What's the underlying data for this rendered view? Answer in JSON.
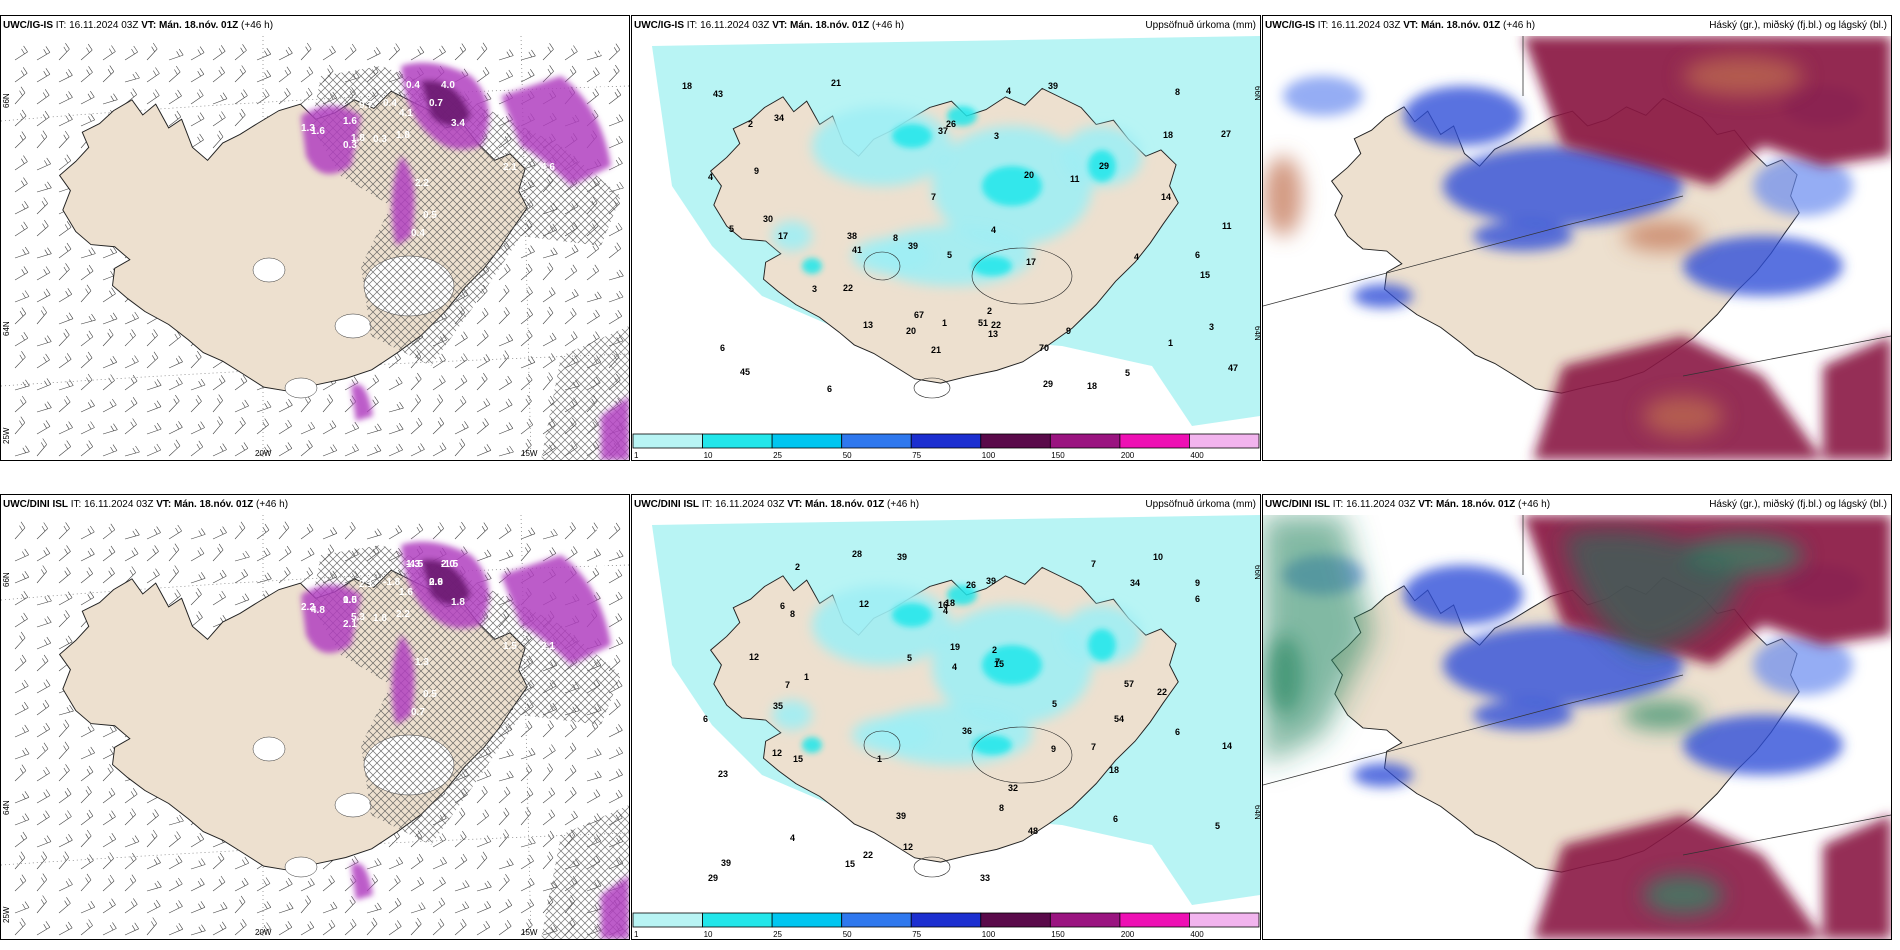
{
  "panels": [
    {
      "id": "p1",
      "source": "UWC/IG-IS",
      "it": " IT: 16.11.2024 03Z ",
      "vt": "VT: Mán. 18.nóv. 01Z",
      "lead": " (+46 h)",
      "title": "",
      "lon_labels": [
        "20W",
        "15W"
      ],
      "lat_labels": [
        "66N",
        "64N"
      ],
      "edge_label": "25W",
      "values": [
        "0.5",
        "0.4",
        "4.0",
        "0.5",
        "0.7",
        "1.6",
        "9.7",
        "1.3",
        "4.1",
        "1.6",
        "1.8",
        "3.4",
        "0.3",
        "1.8",
        "2.1",
        "4.6",
        "2.2",
        "0.5",
        "0.4",
        "0.3",
        "0.4"
      ]
    },
    {
      "id": "p2",
      "source": "UWC/IG-IS",
      "it": " IT: 16.11.2024 03Z ",
      "vt": "VT: Mán. 18.nóv. 01Z",
      "lead": " (+46 h)",
      "title": "Uppsöfnuð úrkoma (mm)",
      "lat_labels": [
        "66N",
        "64N"
      ],
      "values": [
        "1",
        "3",
        "2",
        "4",
        "9",
        "11",
        "18",
        "47",
        "34",
        "70",
        "30",
        "38",
        "39",
        "51",
        "67",
        "45",
        "37",
        "18",
        "13",
        "21",
        "27",
        "29",
        "22",
        "43",
        "20",
        "14",
        "26",
        "15",
        "41",
        "13",
        "22",
        "11",
        "20",
        "17",
        "17",
        "18",
        "7",
        "6",
        "4",
        "8",
        "3",
        "5",
        "29",
        "39",
        "21",
        "8",
        "9",
        "1",
        "2",
        "6",
        "5",
        "5",
        "4",
        "4",
        "3",
        "6"
      ]
    },
    {
      "id": "p3",
      "source": "UWC/IG-IS",
      "it": " IT: 16.11.2024 03Z ",
      "vt": "VT: Mán. 18.nóv. 01Z",
      "lead": " (+46 h)",
      "title": "Háský (gr.), miðský (fj.bl.) og lágský (bl.)"
    },
    {
      "id": "p4",
      "source": "UWC/DINI ISL",
      "it": " IT: 16.11.2024 03Z ",
      "vt": "VT: Mán. 18.nóv. 01Z",
      "lead": " (+46 h)",
      "title": "",
      "lon_labels": [
        "20W",
        "15W"
      ],
      "lat_labels": [
        "66N",
        "64N"
      ],
      "edge_label": "25W",
      "values": [
        "1.7",
        "1.3",
        "2.0",
        "1.2",
        "2.6",
        "0.5",
        "2.1",
        "2.2",
        "1.6",
        "4.8",
        "5.3",
        "1.8",
        "2.1",
        "2.2",
        "1.5",
        "2.1",
        "1.3",
        "0.5",
        "0.7",
        "1.8",
        "-1.8",
        "-2.5",
        "-4.5",
        "-1.5",
        "0.4",
        "0.9",
        "1.0"
      ]
    },
    {
      "id": "p5",
      "source": "UWC/DINI ISL",
      "it": " IT: 16.11.2024 03Z ",
      "vt": "VT: Mán. 18.nóv. 01Z",
      "lead": " (+46 h)",
      "title": "Uppsöfnuð úrkoma (mm)",
      "lat_labels": [
        "66N",
        "64N"
      ],
      "values": [
        "7",
        "4",
        "6",
        "6",
        "8",
        "5",
        "9",
        "39",
        "57",
        "39",
        "35",
        "48",
        "39",
        "34",
        "54",
        "18",
        "12",
        "32",
        "36",
        "29",
        "39",
        "14",
        "22",
        "26",
        "15",
        "19",
        "15",
        "33",
        "22",
        "23",
        "28",
        "18",
        "12",
        "10",
        "7",
        "9",
        "4",
        "8",
        "5",
        "15",
        "12",
        "7",
        "5",
        "2",
        "16",
        "1",
        "2",
        "6",
        "7",
        "12",
        "1",
        "6",
        "4",
        "6"
      ]
    },
    {
      "id": "p6",
      "source": "UWC/DINI ISL",
      "it": " IT: 16.11.2024 03Z ",
      "vt": "VT: Mán. 18.nóv. 01Z",
      "lead": " (+46 h)",
      "title": "Háský (gr.), miðský (fj.bl.) og lágský (bl.)"
    }
  ],
  "legend": {
    "ticks": [
      "1",
      "10",
      "25",
      "50",
      "75",
      "100",
      "150",
      "200",
      "400"
    ],
    "colors": [
      "#b8f4f4",
      "#22e6ea",
      "#00c6f0",
      "#2f78ee",
      "#1c2fd0",
      "#5a0a4a",
      "#9a1480",
      "#ee10b4",
      "#f2b4ee"
    ]
  }
}
